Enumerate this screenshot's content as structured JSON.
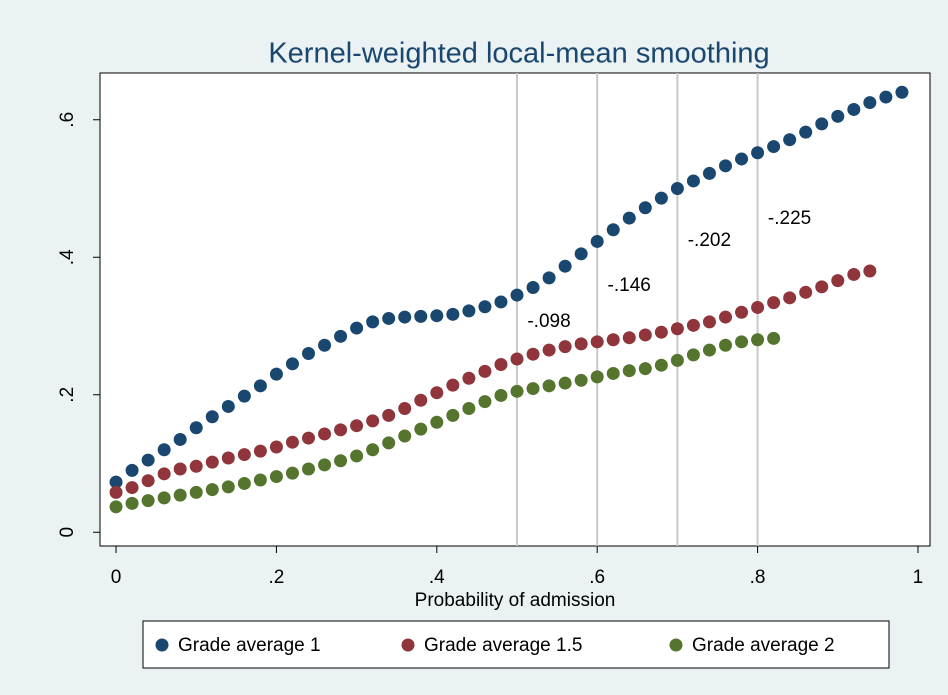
{
  "chart_data": {
    "type": "scatter",
    "title": "Kernel-weighted local-mean smoothing",
    "xlabel": "Probability of admission",
    "xlim": [
      -0.02,
      1.015
    ],
    "ylim": [
      -0.02,
      0.668
    ],
    "xticks": [
      0,
      {
        "value": 0.2,
        "label": ".2"
      },
      {
        "value": 0.4,
        "label": ".4"
      },
      {
        "value": 0.6,
        "label": ".6"
      },
      {
        "value": 0.8,
        "label": ".8"
      },
      1
    ],
    "yticks": [
      0,
      {
        "value": 0.2,
        "label": ".2"
      },
      {
        "value": 0.4,
        "label": ".4"
      },
      {
        "value": 0.6,
        "label": ".6"
      }
    ],
    "xlines": [
      0.5,
      0.6,
      0.7,
      0.8
    ],
    "xline_labels": [
      "-.098",
      "-.146",
      "-.202",
      "-.225"
    ],
    "legend": "bottom",
    "series": [
      {
        "name": "Grade average 1",
        "color": "#1a476f",
        "x": [
          0,
          0.02,
          0.04,
          0.06,
          0.08,
          0.1,
          0.12,
          0.14,
          0.16,
          0.18,
          0.2,
          0.22,
          0.24,
          0.26,
          0.28,
          0.3,
          0.32,
          0.34,
          0.36,
          0.38,
          0.4,
          0.42,
          0.44,
          0.46,
          0.48,
          0.5,
          0.52,
          0.54,
          0.56,
          0.58,
          0.6,
          0.62,
          0.64,
          0.66,
          0.68,
          0.7,
          0.72,
          0.74,
          0.76,
          0.78,
          0.8,
          0.82,
          0.84,
          0.86,
          0.88,
          0.9,
          0.92,
          0.94,
          0.96,
          0.98
        ],
        "values": [
          0.073,
          0.09,
          0.105,
          0.12,
          0.135,
          0.152,
          0.168,
          0.183,
          0.198,
          0.213,
          0.23,
          0.245,
          0.26,
          0.272,
          0.285,
          0.297,
          0.306,
          0.311,
          0.313,
          0.314,
          0.315,
          0.317,
          0.322,
          0.328,
          0.335,
          0.345,
          0.356,
          0.37,
          0.387,
          0.405,
          0.423,
          0.44,
          0.457,
          0.472,
          0.486,
          0.5,
          0.511,
          0.522,
          0.533,
          0.543,
          0.552,
          0.561,
          0.571,
          0.582,
          0.594,
          0.605,
          0.615,
          0.625,
          0.633,
          0.64
        ]
      },
      {
        "name": "Grade average 1.5",
        "color": "#90353b",
        "x": [
          0,
          0.02,
          0.04,
          0.06,
          0.08,
          0.1,
          0.12,
          0.14,
          0.16,
          0.18,
          0.2,
          0.22,
          0.24,
          0.26,
          0.28,
          0.3,
          0.32,
          0.34,
          0.36,
          0.38,
          0.4,
          0.42,
          0.44,
          0.46,
          0.48,
          0.5,
          0.52,
          0.54,
          0.56,
          0.58,
          0.6,
          0.62,
          0.64,
          0.66,
          0.68,
          0.7,
          0.72,
          0.74,
          0.76,
          0.78,
          0.8,
          0.82,
          0.84,
          0.86,
          0.88,
          0.9,
          0.92,
          0.94
        ],
        "values": [
          0.058,
          0.065,
          0.075,
          0.085,
          0.092,
          0.096,
          0.102,
          0.108,
          0.113,
          0.118,
          0.124,
          0.131,
          0.137,
          0.143,
          0.149,
          0.155,
          0.162,
          0.17,
          0.18,
          0.192,
          0.203,
          0.214,
          0.224,
          0.234,
          0.244,
          0.252,
          0.259,
          0.265,
          0.27,
          0.274,
          0.277,
          0.28,
          0.283,
          0.287,
          0.291,
          0.296,
          0.301,
          0.306,
          0.313,
          0.32,
          0.327,
          0.334,
          0.341,
          0.349,
          0.357,
          0.366,
          0.375,
          0.38
        ]
      },
      {
        "name": "Grade average 2",
        "color": "#55752f",
        "x": [
          0,
          0.02,
          0.04,
          0.06,
          0.08,
          0.1,
          0.12,
          0.14,
          0.16,
          0.18,
          0.2,
          0.22,
          0.24,
          0.26,
          0.28,
          0.3,
          0.32,
          0.34,
          0.36,
          0.38,
          0.4,
          0.42,
          0.44,
          0.46,
          0.48,
          0.5,
          0.52,
          0.54,
          0.56,
          0.58,
          0.6,
          0.62,
          0.64,
          0.66,
          0.68,
          0.7,
          0.72,
          0.74,
          0.76,
          0.78,
          0.8,
          0.82
        ],
        "values": [
          0.037,
          0.042,
          0.046,
          0.05,
          0.054,
          0.058,
          0.062,
          0.066,
          0.071,
          0.076,
          0.081,
          0.086,
          0.092,
          0.098,
          0.104,
          0.111,
          0.12,
          0.13,
          0.14,
          0.15,
          0.16,
          0.17,
          0.18,
          0.19,
          0.199,
          0.205,
          0.209,
          0.213,
          0.217,
          0.221,
          0.226,
          0.231,
          0.235,
          0.238,
          0.243,
          0.25,
          0.258,
          0.265,
          0.272,
          0.277,
          0.28,
          0.282
        ]
      }
    ]
  }
}
